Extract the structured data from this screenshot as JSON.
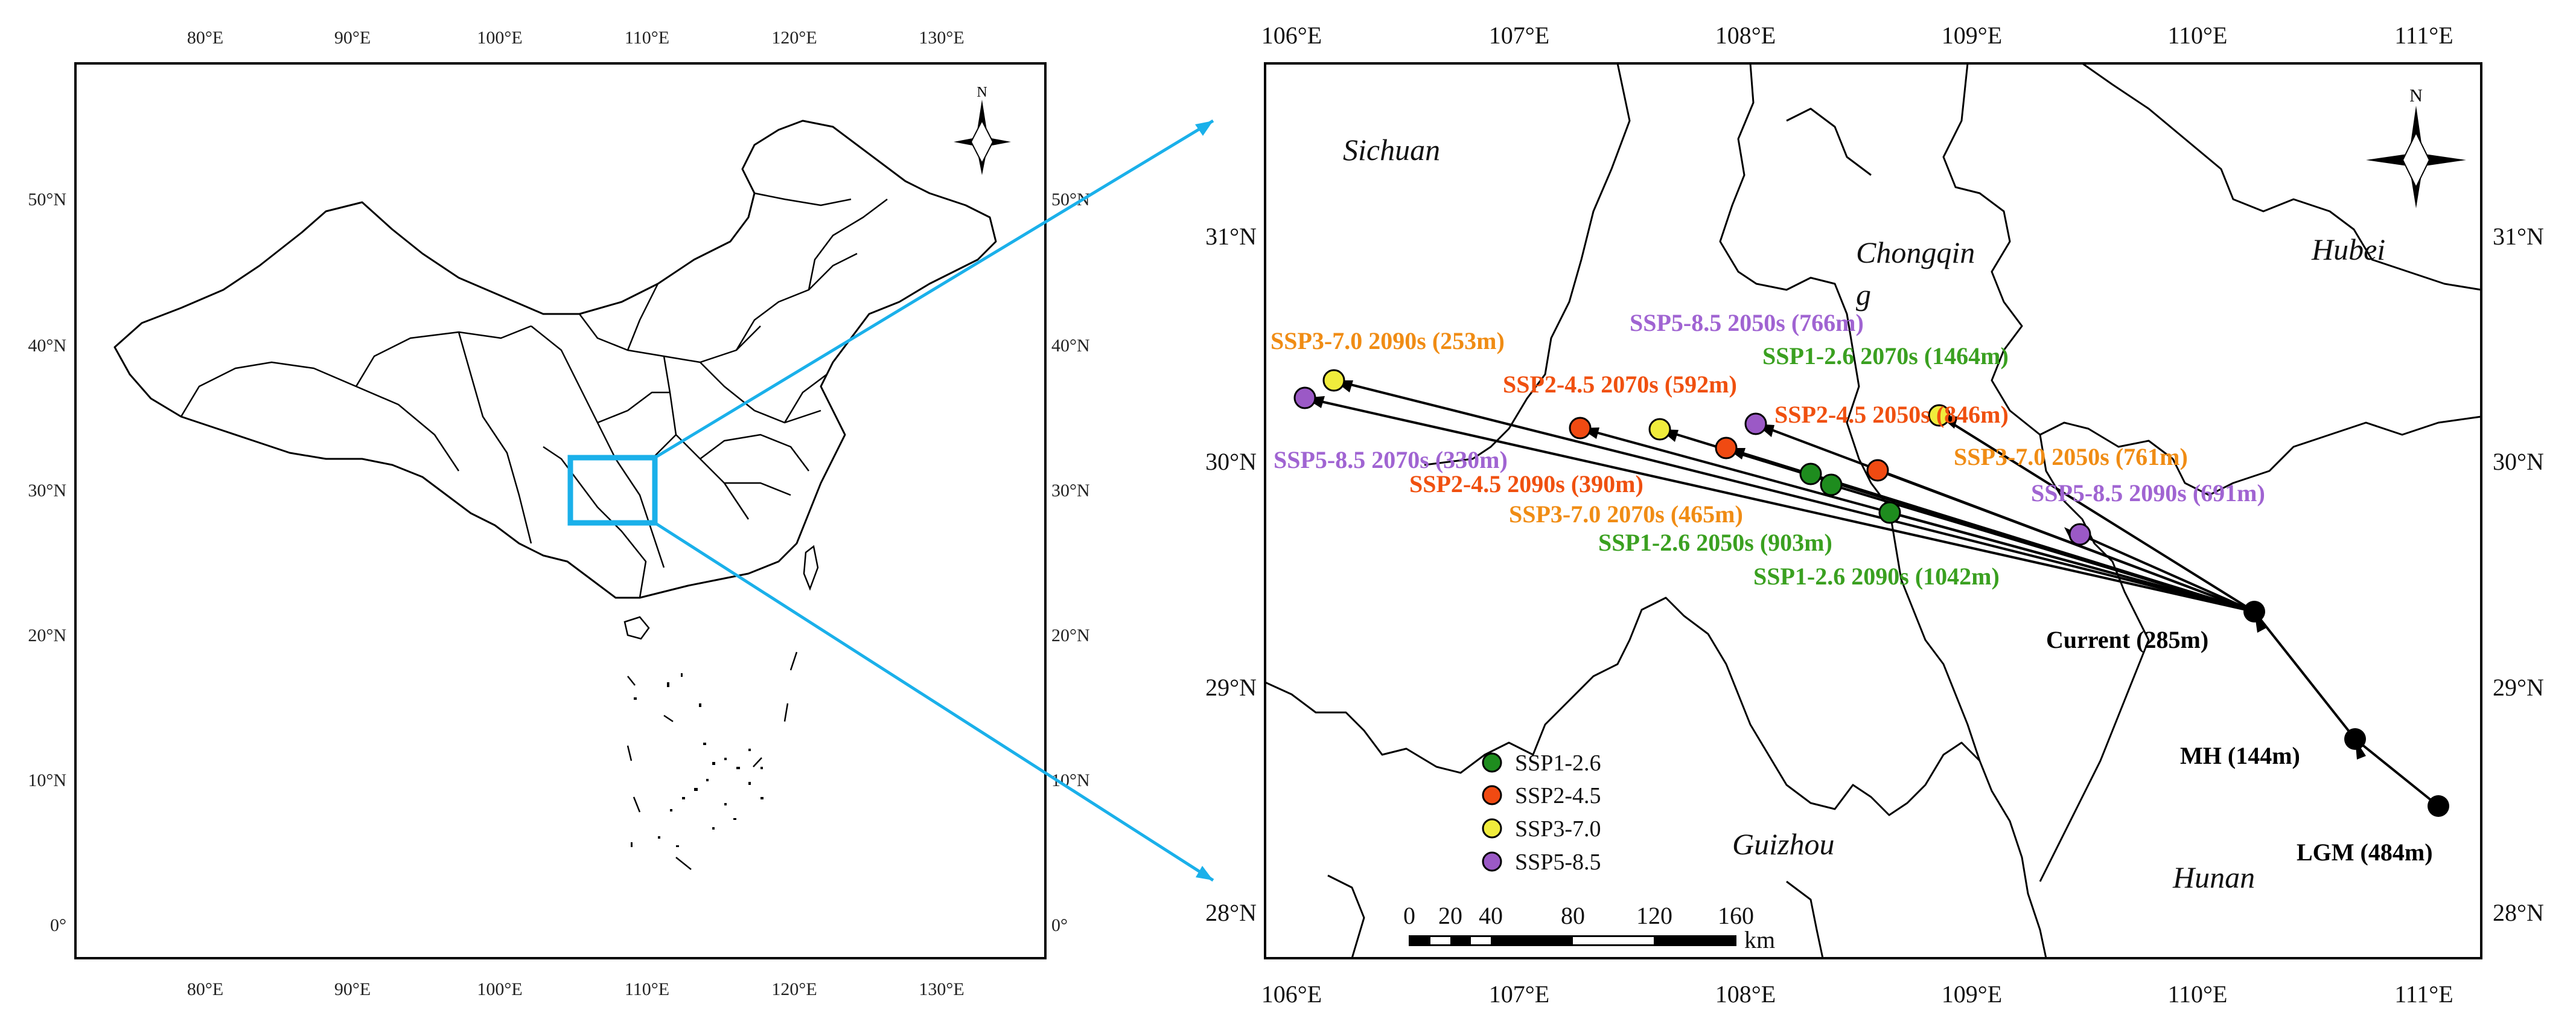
{
  "overview_map": {
    "lon_ticks_top": [
      "80°E",
      "90°E",
      "100°E",
      "110°E",
      "120°E",
      "130°E"
    ],
    "lon_ticks_bottom": [
      "80°E",
      "90°E",
      "100°E",
      "110°E",
      "120°E",
      "130°E"
    ],
    "lat_ticks_left": [
      "50°N",
      "40°N",
      "30°N",
      "20°N",
      "10°N",
      "0°"
    ],
    "lat_ticks_right": [
      "50°N",
      "40°N",
      "30°N",
      "20°N",
      "10°N",
      "0°"
    ],
    "north_label": "N"
  },
  "detail_map": {
    "lon_ticks_top": [
      "106°E",
      "107°E",
      "108°E",
      "109°E",
      "110°E",
      "111°E"
    ],
    "lon_ticks_bottom": [
      "106°E",
      "107°E",
      "108°E",
      "109°E",
      "110°E",
      "111°E"
    ],
    "lat_ticks_left": [
      "31°N",
      "30°N",
      "29°N",
      "28°N"
    ],
    "lat_ticks_right": [
      "31°N",
      "30°N",
      "29°N",
      "28°N"
    ],
    "north_label": "N",
    "regions": {
      "sichuan": "Sichuan",
      "chongqing_line1": "Chongqin",
      "chongqing_line2": "g",
      "hubei": "Hubei",
      "guizhou": "Guizhou",
      "hunan": "Hunan"
    },
    "historic_points": {
      "current": "Current (285m)",
      "mh": "MH (144m)",
      "lgm": "LGM (484m)"
    },
    "ssp_points": {
      "ssp126_2050": "SSP1-2.6 2050s (903m)",
      "ssp126_2070": "SSP1-2.6 2070s (1464m)",
      "ssp126_2090": "SSP1-2.6 2090s (1042m)",
      "ssp245_2050": "SSP2-4.5 2050s (846m)",
      "ssp245_2070": "SSP2-4.5 2070s (592m)",
      "ssp245_2090": "SSP2-4.5 2090s (390m)",
      "ssp370_2050": "SSP3-7.0 2050s (761m)",
      "ssp370_2070": "SSP3-7.0 2070s (465m)",
      "ssp370_2090": "SSP3-7.0 2090s (253m)",
      "ssp585_2050": "SSP5-8.5 2050s (766m)",
      "ssp585_2070": "SSP5-8.5 2070s (330m)",
      "ssp585_2090": "SSP5-8.5 2090s (691m)"
    },
    "legend": {
      "ssp126": "SSP1-2.6",
      "ssp245": "SSP2-4.5",
      "ssp370": "SSP3-7.0",
      "ssp585": "SSP5-8.5"
    },
    "scale_bar": {
      "t0": "0",
      "t20": "20",
      "t40": "40",
      "t80": "80",
      "t120": "120",
      "t160": "160",
      "unit": "km"
    }
  },
  "colors": {
    "ssp126": "#1e8c1e",
    "ssp245": "#f04a12",
    "ssp370": "#f0ec3c",
    "ssp585": "#9b59c6",
    "ssp126_text": "#3aa020",
    "ssp245_text": "#f0500f",
    "ssp370_text": "#f08c14",
    "ssp585_text": "#a064d2",
    "inset_box": "#1ab0ea"
  }
}
